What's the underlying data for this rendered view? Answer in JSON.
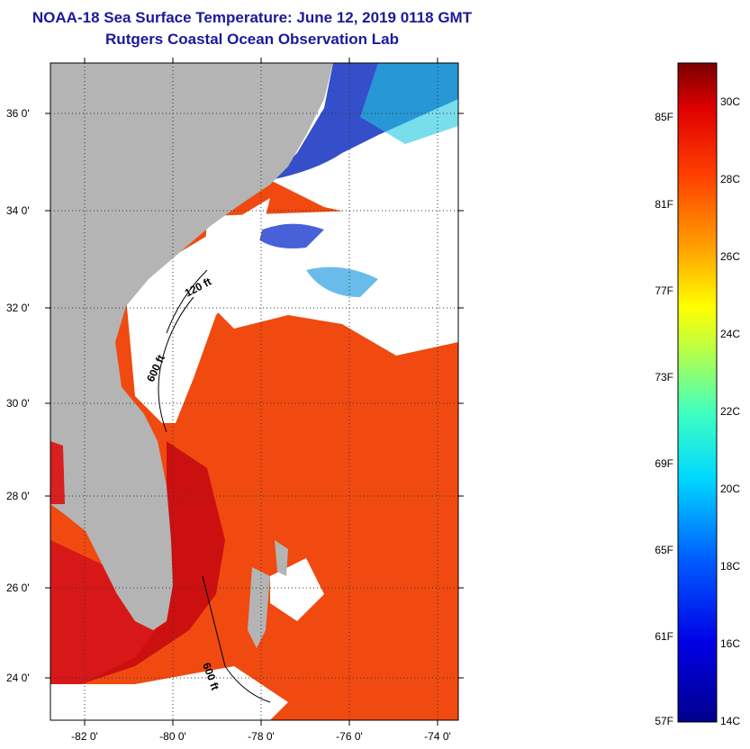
{
  "title_line1": "NOAA-18 Sea Surface Temperature:  June 12, 2019 0118 GMT",
  "title_line2": "Rutgers Coastal Ocean Observation Lab",
  "lat_labels": [
    "36 0'",
    "34 0'",
    "32 0'",
    "30 0'",
    "28 0'",
    "26 0'",
    "24 0'"
  ],
  "lon_labels": [
    "-82 0'",
    "-80 0'",
    "-78 0'",
    "-76 0'",
    "-74 0'"
  ],
  "contour_labels": [
    "120 ft",
    "600 ft",
    "600 ft"
  ],
  "colorbar": {
    "fahrenheit": [
      "85F",
      "81F",
      "77F",
      "73F",
      "69F",
      "65F",
      "61F",
      "57F"
    ],
    "celsius": [
      "30C",
      "28C",
      "26C",
      "24C",
      "22C",
      "20C",
      "18C",
      "16C",
      "14C"
    ]
  },
  "colors": {
    "title": "#1a1a9a",
    "land": "#b4b4b4",
    "warm_water": "#f03c0a",
    "gulf_stream": "#cc0a0a",
    "cold_water": "#0a1aa0"
  }
}
